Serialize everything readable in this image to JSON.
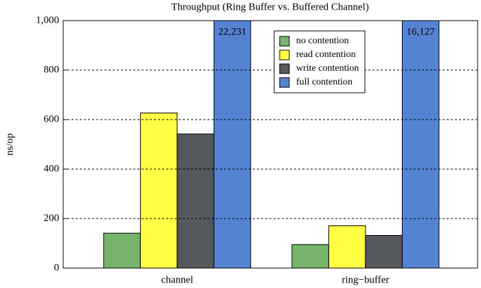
{
  "chart_data": {
    "type": "bar",
    "title": "Throughput (Ring Buffer vs. Buffered Channel)",
    "y_label": "ns/op",
    "categories": [
      "channel",
      "ring−buffer"
    ],
    "series": [
      {
        "name": "no contention",
        "color": "#77b36a",
        "values": [
          141,
          95
        ]
      },
      {
        "name": "read contention",
        "color": "#ffff44",
        "values": [
          627,
          171
        ]
      },
      {
        "name": "write contention",
        "color": "#55585d",
        "values": [
          542,
          132
        ]
      },
      {
        "name": "full contention",
        "color": "#5583d4",
        "values": [
          22231,
          16127
        ],
        "value_labels": [
          "22,231",
          "16,127"
        ]
      }
    ],
    "ylim": [
      0,
      1000
    ],
    "yticks": [
      0,
      200,
      400,
      600,
      800,
      {
        "value": 1000,
        "label": "1,000"
      }
    ],
    "grid": true
  }
}
